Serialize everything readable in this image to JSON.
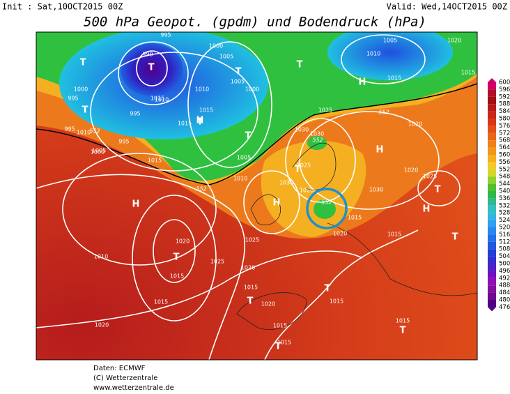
{
  "header": {
    "init": "Init : Sat,10OCT2015 00Z",
    "valid": "Valid: Wed,14OCT2015 00Z",
    "title": "500 hPa Geopot. (gpdm) und Bodendruck (hPa)"
  },
  "map": {
    "labels": [
      "T",
      "T",
      "T",
      "T",
      "T",
      "T",
      "T",
      "T",
      "T",
      "T",
      "T",
      "T",
      "T",
      "T",
      "T",
      "H",
      "H",
      "H",
      "H",
      "H",
      "H",
      "995",
      "990",
      "1000",
      "1005",
      "1010",
      "1005",
      "1020",
      "1015",
      "1015",
      "1000",
      "995",
      "995",
      "1010",
      "1005",
      "1000",
      "1015",
      "1015",
      "1010",
      "995",
      "1005",
      "1010",
      "1015",
      "995",
      "1000",
      "1005",
      "1010",
      "1015",
      "1025",
      "1020",
      "1030",
      "1030",
      "1025",
      "1030",
      "1030",
      "1025",
      "1015",
      "1020",
      "1020",
      "1015",
      "1020",
      "1015",
      "1010",
      "1025",
      "1025",
      "1020",
      "1015",
      "1015",
      "1015",
      "1015",
      "1020",
      "1015",
      "1015",
      "1020",
      "1020",
      "552",
      "552",
      "552",
      "552",
      "552"
    ]
  },
  "colorbar": {
    "labels": [
      "600",
      "596",
      "592",
      "588",
      "584",
      "580",
      "576",
      "572",
      "568",
      "564",
      "560",
      "556",
      "552",
      "548",
      "544",
      "540",
      "536",
      "532",
      "528",
      "524",
      "520",
      "516",
      "512",
      "508",
      "504",
      "500",
      "496",
      "492",
      "488",
      "484",
      "480",
      "476"
    ]
  },
  "footer": {
    "lines": [
      "Daten: ECMWF",
      "(C) Wetterzentrale",
      "www.wetterzentrale.de"
    ]
  }
}
